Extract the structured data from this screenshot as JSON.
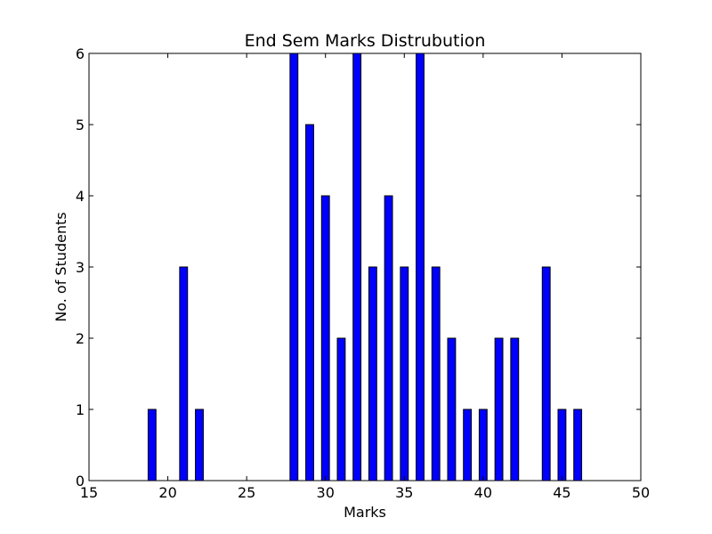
{
  "chart_data": {
    "type": "bar",
    "title": "End Sem Marks Distrubution",
    "xlabel": "Marks",
    "ylabel": "No. of Students",
    "xlim": [
      15,
      50
    ],
    "ylim": [
      0,
      6
    ],
    "x_ticks": [
      "15",
      "20",
      "25",
      "30",
      "35",
      "40",
      "45",
      "50"
    ],
    "y_ticks": [
      "0",
      "1",
      "2",
      "3",
      "4",
      "5",
      "6"
    ],
    "grid": false,
    "bar_color": "#0000ff",
    "edge_color": "#000000",
    "series": [
      {
        "x": [
          16,
          17,
          18,
          19,
          20,
          21,
          22,
          23,
          24,
          25,
          26,
          27,
          28,
          29,
          30,
          31,
          32,
          33,
          34,
          35,
          36,
          37,
          38,
          39,
          40,
          41,
          42,
          43,
          44,
          45,
          46,
          47,
          48,
          49
        ],
        "values": [
          0,
          0,
          0,
          1,
          0,
          3,
          1,
          0,
          0,
          0,
          0,
          0,
          6,
          5,
          4,
          2,
          6,
          3,
          4,
          3,
          6,
          3,
          2,
          1,
          1,
          2,
          2,
          0,
          3,
          1,
          1,
          0,
          0,
          0
        ]
      }
    ]
  }
}
